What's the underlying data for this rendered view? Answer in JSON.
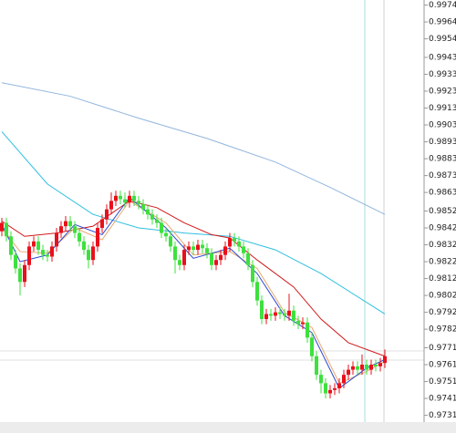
{
  "chart_data": {
    "type": "candlestick",
    "open": [
      0.984,
      0.9845,
      0.9837,
      0.9826,
      0.9818,
      0.981,
      0.982,
      0.9831,
      0.9834,
      0.9829,
      0.9826,
      0.9825,
      0.9831,
      0.9839,
      0.9843,
      0.9846,
      0.9843,
      0.9839,
      0.9834,
      0.9829,
      0.9823,
      0.9831,
      0.9842,
      0.9847,
      0.9853,
      0.9858,
      0.9861,
      0.9859,
      0.9857,
      0.9861,
      0.9858,
      0.9856,
      0.9853,
      0.985,
      0.9847,
      0.9845,
      0.9839,
      0.9837,
      0.9831,
      0.9823,
      0.982,
      0.9829,
      0.9831,
      0.9829,
      0.9832,
      0.983,
      0.9827,
      0.982,
      0.9823,
      0.9826,
      0.9831,
      0.9836,
      0.9834,
      0.9831,
      0.9827,
      0.982,
      0.981,
      0.9799,
      0.9788,
      0.9791,
      0.979,
      0.9792,
      0.9791,
      0.979,
      0.9793,
      0.9787,
      0.9785,
      0.9786,
      0.9777,
      0.9766,
      0.9755,
      0.975,
      0.9744,
      0.9746,
      0.9747,
      0.975,
      0.9755,
      0.9758,
      0.976,
      0.9758,
      0.9761,
      0.9758,
      0.9761,
      0.976,
      0.9762
    ],
    "high": [
      0.9848,
      0.9848,
      0.984,
      0.9829,
      0.9821,
      0.9823,
      0.9834,
      0.9837,
      0.9837,
      0.9832,
      0.9829,
      0.9834,
      0.9842,
      0.9846,
      0.9849,
      0.9849,
      0.9846,
      0.9842,
      0.9837,
      0.9832,
      0.9834,
      0.9845,
      0.985,
      0.9856,
      0.9863,
      0.9864,
      0.9864,
      0.9863,
      0.9864,
      0.9864,
      0.9861,
      0.9859,
      0.9856,
      0.9853,
      0.985,
      0.9848,
      0.9842,
      0.984,
      0.9834,
      0.9826,
      0.9832,
      0.9834,
      0.9834,
      0.9835,
      0.9835,
      0.9833,
      0.983,
      0.9826,
      0.9829,
      0.9834,
      0.9839,
      0.9839,
      0.9837,
      0.9834,
      0.983,
      0.9823,
      0.9813,
      0.9802,
      0.9794,
      0.9794,
      0.9795,
      0.9795,
      0.9794,
      0.9803,
      0.9796,
      0.979,
      0.9789,
      0.9789,
      0.978,
      0.9769,
      0.9758,
      0.9753,
      0.9749,
      0.975,
      0.9753,
      0.9758,
      0.9761,
      0.9763,
      0.9763,
      0.9767,
      0.9764,
      0.9764,
      0.9764,
      0.9765,
      0.977
    ],
    "low": [
      0.9837,
      0.9834,
      0.9823,
      0.9815,
      0.9802,
      0.9807,
      0.9817,
      0.9828,
      0.9826,
      0.9823,
      0.9822,
      0.9822,
      0.9828,
      0.9836,
      0.984,
      0.984,
      0.9836,
      0.9831,
      0.9826,
      0.9818,
      0.982,
      0.9828,
      0.9839,
      0.9844,
      0.985,
      0.9855,
      0.9856,
      0.9854,
      0.9854,
      0.9855,
      0.9853,
      0.985,
      0.9847,
      0.9844,
      0.9842,
      0.9836,
      0.9834,
      0.9828,
      0.9815,
      0.9817,
      0.9817,
      0.9826,
      0.9826,
      0.9826,
      0.9827,
      0.9824,
      0.9817,
      0.9817,
      0.982,
      0.9823,
      0.9828,
      0.9831,
      0.9828,
      0.9824,
      0.9817,
      0.9807,
      0.9796,
      0.9785,
      0.9785,
      0.9787,
      0.9787,
      0.9788,
      0.9787,
      0.9787,
      0.9784,
      0.9782,
      0.9782,
      0.9774,
      0.9763,
      0.9752,
      0.9744,
      0.9741,
      0.9741,
      0.9743,
      0.9744,
      0.9747,
      0.9752,
      0.9755,
      0.9755,
      0.9755,
      0.9755,
      0.9755,
      0.9757,
      0.9757,
      0.9759
    ],
    "close": [
      0.9845,
      0.9837,
      0.9826,
      0.9818,
      0.981,
      0.982,
      0.9831,
      0.9834,
      0.9829,
      0.9826,
      0.9825,
      0.9831,
      0.9839,
      0.9843,
      0.9846,
      0.9843,
      0.9839,
      0.9834,
      0.9829,
      0.9823,
      0.9831,
      0.9842,
      0.9847,
      0.9853,
      0.9858,
      0.9861,
      0.9859,
      0.9857,
      0.9861,
      0.9858,
      0.9856,
      0.9853,
      0.985,
      0.9847,
      0.9845,
      0.9839,
      0.9837,
      0.9831,
      0.9823,
      0.982,
      0.9829,
      0.9831,
      0.9829,
      0.9832,
      0.983,
      0.9827,
      0.982,
      0.9823,
      0.9826,
      0.9831,
      0.9836,
      0.9834,
      0.9831,
      0.9827,
      0.982,
      0.981,
      0.9799,
      0.9788,
      0.9791,
      0.979,
      0.9792,
      0.9791,
      0.979,
      0.9793,
      0.9787,
      0.9785,
      0.9786,
      0.9777,
      0.9766,
      0.9755,
      0.975,
      0.9744,
      0.9746,
      0.9747,
      0.975,
      0.9755,
      0.9758,
      0.976,
      0.9758,
      0.9761,
      0.9758,
      0.9761,
      0.976,
      0.9762,
      0.9766
    ],
    "up_color": "#e8101c",
    "down_color": "#3ee03e",
    "series": [
      {
        "color": "#92b6dc",
        "x": [
          0,
          15,
          30,
          45,
          60,
          72,
          84
        ],
        "values": [
          0.9928,
          0.992,
          0.9907,
          0.9895,
          0.9881,
          0.9866,
          0.985
        ]
      },
      {
        "color": "#2fbfe0",
        "x": [
          0,
          10,
          20,
          30,
          40,
          50,
          60,
          70,
          84
        ],
        "values": [
          0.9899,
          0.9868,
          0.985,
          0.9842,
          0.9839,
          0.9837,
          0.9829,
          0.9815,
          0.9791
        ]
      },
      {
        "color": "#d01818",
        "x": [
          0,
          5,
          12,
          20,
          28,
          34,
          40,
          46,
          50,
          56,
          64,
          70,
          76,
          84
        ],
        "values": [
          0.9846,
          0.9837,
          0.9839,
          0.9843,
          0.9858,
          0.9854,
          0.9845,
          0.9838,
          0.9836,
          0.9823,
          0.9807,
          0.9788,
          0.9774,
          0.9766
        ]
      },
      {
        "color": "#e8a870",
        "x": [
          0,
          4,
          10,
          16,
          22,
          28,
          36,
          42,
          50,
          56,
          62,
          68,
          74,
          80,
          84
        ],
        "values": [
          0.9842,
          0.9828,
          0.9827,
          0.9842,
          0.9835,
          0.9858,
          0.9845,
          0.9826,
          0.9828,
          0.9818,
          0.9792,
          0.9783,
          0.975,
          0.9757,
          0.9763
        ]
      },
      {
        "color": "#2a48d0",
        "x": [
          0,
          4,
          10,
          16,
          22,
          28,
          36,
          42,
          50,
          56,
          62,
          68,
          74,
          80,
          84
        ],
        "values": [
          0.9844,
          0.9822,
          0.9826,
          0.9844,
          0.9838,
          0.986,
          0.9842,
          0.9824,
          0.983,
          0.9815,
          0.979,
          0.978,
          0.9747,
          0.9759,
          0.9764
        ]
      }
    ],
    "ylim": [
      0.9727,
      0.9977
    ],
    "yticks": [
      0.9974,
      0.9964,
      0.9954,
      0.9943,
      0.9933,
      0.9923,
      0.9913,
      0.9903,
      0.9893,
      0.9883,
      0.9873,
      0.9863,
      0.9852,
      0.9842,
      0.9832,
      0.9822,
      0.9812,
      0.9802,
      0.9792,
      0.9782,
      0.9771,
      0.9761,
      0.9751,
      0.9741,
      0.9731
    ]
  }
}
